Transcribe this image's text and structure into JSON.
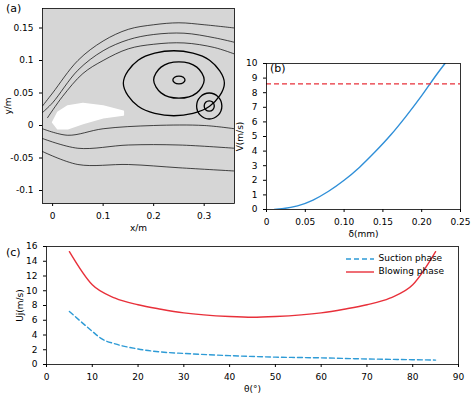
{
  "chart_data": [
    {
      "type": "streamline",
      "title": "(a)",
      "x_label": "x/m",
      "y_label": "y/m",
      "xlim": [
        -0.02,
        0.36
      ],
      "xticks": [
        0,
        0.1,
        0.2,
        0.3
      ],
      "ylim": [
        -0.12,
        0.18
      ],
      "yticks": [
        -0.1,
        -0.05,
        0,
        0.05,
        0.1,
        0.15
      ],
      "color": "#000000",
      "series": [
        {
          "type": "line",
          "x": [
            -0.02,
            0,
            0.05,
            0.1,
            0.15,
            0.2,
            0.25,
            0.3,
            0.36
          ],
          "values": [
            0.03,
            0.05,
            0.1,
            0.13,
            0.148,
            0.155,
            0.158,
            0.155,
            0.15
          ]
        },
        {
          "type": "line",
          "x": [
            -0.02,
            0,
            0.05,
            0.1,
            0.15,
            0.2,
            0.26,
            0.32,
            0.36
          ],
          "values": [
            0.02,
            0.035,
            0.085,
            0.115,
            0.132,
            0.14,
            0.142,
            0.135,
            0.128
          ]
        },
        {
          "type": "line",
          "x": [
            -0.01,
            0.02,
            0.06,
            0.1,
            0.15,
            0.2,
            0.26,
            0.32,
            0.36
          ],
          "values": [
            0.012,
            0.045,
            0.08,
            0.1,
            0.118,
            0.125,
            0.127,
            0.12,
            0.11
          ]
        },
        {
          "type": "line",
          "x": [
            -0.02,
            0.03,
            0.1,
            0.2,
            0.3,
            0.36
          ],
          "values": [
            -0.005,
            -0.015,
            -0.005,
            0,
            0,
            -0.005
          ]
        },
        {
          "type": "line",
          "x": [
            -0.02,
            0.05,
            0.15,
            0.25,
            0.36
          ],
          "values": [
            -0.02,
            -0.035,
            -0.03,
            -0.03,
            -0.035
          ]
        },
        {
          "type": "line",
          "x": [
            -0.02,
            0.05,
            0.15,
            0.25,
            0.36
          ],
          "values": [
            -0.04,
            -0.06,
            -0.06,
            -0.065,
            -0.07
          ]
        },
        {
          "type": "loop",
          "x": [
            0.262,
            0.2585,
            0.25,
            0.2415,
            0.238,
            0.2415,
            0.25,
            0.2585
          ],
          "values": [
            0.07,
            0.0742,
            0.076,
            0.0742,
            0.07,
            0.0658,
            0.064,
            0.0658
          ]
        },
        {
          "type": "loop",
          "x": [
            0.3,
            0.2854,
            0.25,
            0.2146,
            0.2,
            0.2146,
            0.25,
            0.2854
          ],
          "values": [
            0.07,
            0.0898,
            0.098,
            0.0898,
            0.07,
            0.0502,
            0.042,
            0.0502
          ]
        },
        {
          "type": "loop",
          "x": [
            0.34,
            0.3107,
            0.24,
            0.1693,
            0.14,
            0.1693,
            0.24,
            0.3107
          ],
          "values": [
            0.065,
            0.1004,
            0.115,
            0.1004,
            0.065,
            0.0296,
            0.015,
            0.0296
          ]
        },
        {
          "type": "loop",
          "x": [
            0.32,
            0.3171,
            0.31,
            0.3029,
            0.3,
            0.3029,
            0.31,
            0.3171
          ],
          "values": [
            0.03,
            0.0357,
            0.038,
            0.0357,
            0.03,
            0.0243,
            0.022,
            0.0243
          ]
        },
        {
          "type": "loop",
          "x": [
            0.335,
            0.3277,
            0.31,
            0.2923,
            0.285,
            0.2923,
            0.31,
            0.3277
          ],
          "values": [
            0.03,
            0.0441,
            0.05,
            0.0441,
            0.03,
            0.0159,
            0.01,
            0.0159
          ]
        },
        {
          "type": "polygon",
          "color": "#ffffff",
          "x": [
            0,
            0.01,
            0.03,
            0.06,
            0.1,
            0.14,
            0.14,
            0.1,
            0.06,
            0.03,
            0.01
          ],
          "values": [
            0.005,
            0.02,
            0.03,
            0.034,
            0.03,
            0.022,
            0.016,
            0.012,
            0.003,
            -0.005,
            -0.005
          ]
        }
      ]
    },
    {
      "type": "line",
      "title": "(b)",
      "x_label": "δ(mm)",
      "y_label": "V(m/s)",
      "xlim": [
        0,
        0.25
      ],
      "xticks": [
        0,
        {
          "value": 0.05,
          "label": "0.05"
        },
        {
          "value": 0.1,
          "label": "0.10"
        },
        {
          "value": 0.15,
          "label": "0.15"
        },
        {
          "value": 0.2,
          "label": "0.20"
        },
        {
          "value": 0.25,
          "label": "0.25"
        }
      ],
      "ylim": [
        0,
        10
      ],
      "yticks": [
        0,
        1,
        2,
        3,
        4,
        5,
        6,
        7,
        8,
        9,
        10
      ],
      "series": [
        {
          "type": "line",
          "color": "#2f8fd8",
          "line_style": "solid",
          "x": [
            0.01,
            0.02,
            0.04,
            0.06,
            0.08,
            0.1,
            0.12,
            0.14,
            0.16,
            0.18,
            0.2,
            0.22,
            0.23
          ],
          "values": [
            0,
            0.05,
            0.25,
            0.65,
            1.25,
            2.0,
            2.9,
            3.95,
            5.1,
            6.4,
            7.8,
            9.3,
            10.0
          ]
        },
        {
          "type": "hline",
          "color": "#e8303a",
          "line_style": "dashed",
          "values": [
            8.6
          ]
        }
      ]
    },
    {
      "type": "line",
      "title": "(c)",
      "x_label": "θ(°)",
      "y_label": "Uj(m/s)",
      "xlim": [
        0,
        90
      ],
      "xticks": [
        0,
        10,
        20,
        30,
        40,
        50,
        60,
        70,
        80,
        90
      ],
      "ylim": [
        0,
        16
      ],
      "yticks": [
        0,
        2,
        4,
        6,
        8,
        10,
        12,
        14,
        16
      ],
      "legend": "top-right",
      "series": [
        {
          "name": "Suction phase",
          "type": "line",
          "color": "#2e9bd6",
          "line_style": "dashed",
          "x": [
            5,
            10,
            12,
            15,
            20,
            25,
            30,
            40,
            50,
            60,
            70,
            80,
            85
          ],
          "values": [
            7.2,
            4.5,
            3.5,
            2.8,
            2.1,
            1.7,
            1.5,
            1.2,
            1.0,
            0.9,
            0.75,
            0.65,
            0.6
          ]
        },
        {
          "name": "Blowing phase",
          "type": "line",
          "color": "#e8303a",
          "line_style": "solid",
          "x": [
            5,
            10,
            15,
            20,
            25,
            30,
            40,
            45,
            50,
            60,
            65,
            70,
            75,
            80,
            85
          ],
          "values": [
            15.3,
            10.8,
            9,
            8.1,
            7.5,
            7,
            6.5,
            6.4,
            6.5,
            7,
            7.5,
            8.1,
            9,
            10.8,
            15.3
          ]
        }
      ]
    }
  ]
}
